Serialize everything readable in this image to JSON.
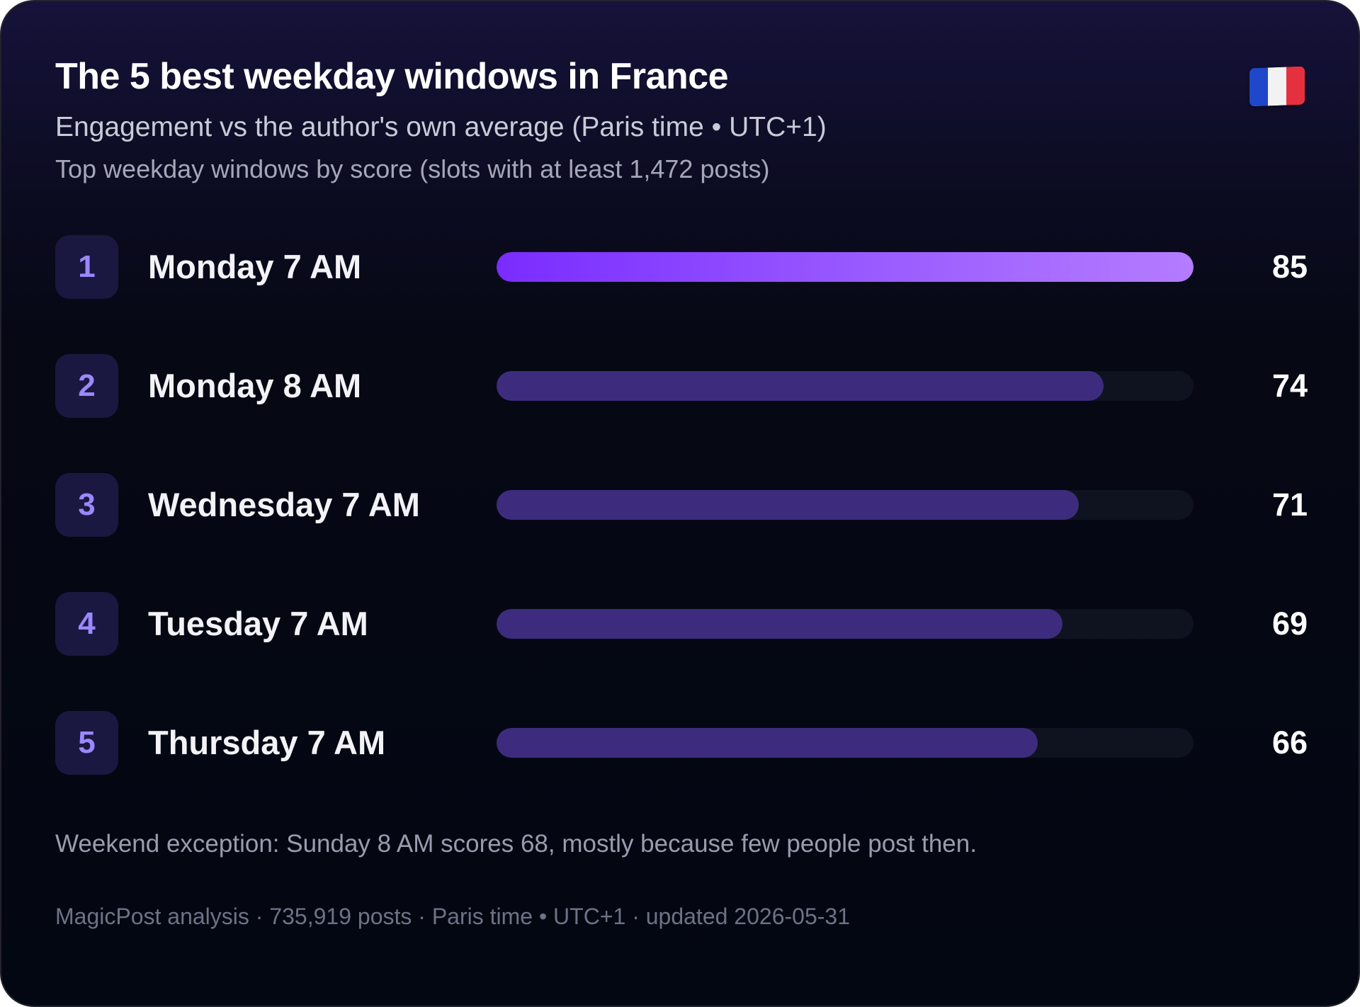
{
  "header": {
    "title": "The 5 best weekday windows in France",
    "subtitle": "Engagement vs the author's own average (Paris time • UTC+1)",
    "subnote": "Top weekday windows by score (slots with at least 1,472 posts)",
    "flag_icon": "france-flag-icon"
  },
  "chart_data": {
    "type": "bar",
    "orientation": "horizontal",
    "ranks": [
      "1",
      "2",
      "3",
      "4",
      "5"
    ],
    "categories": [
      "Monday 7 AM",
      "Monday 8 AM",
      "Wednesday 7 AM",
      "Tuesday 7 AM",
      "Thursday 7 AM"
    ],
    "values": [
      85,
      74,
      71,
      69,
      66
    ],
    "xlim": [
      0,
      85
    ],
    "grid": false,
    "legend": "none",
    "colors": {
      "top_bar_gradient": [
        "#7a2cff",
        "#b47cff"
      ],
      "bar": "#3d2c7e",
      "track": "#0f1320",
      "rank_badge": "#1a1840",
      "rank_text": "#9b87ff"
    }
  },
  "note": "Weekend exception: Sunday 8 AM scores 68, mostly because few people post then.",
  "footer": "MagicPost analysis · 735,919 posts · Paris time • UTC+1 · updated 2026-05-31"
}
